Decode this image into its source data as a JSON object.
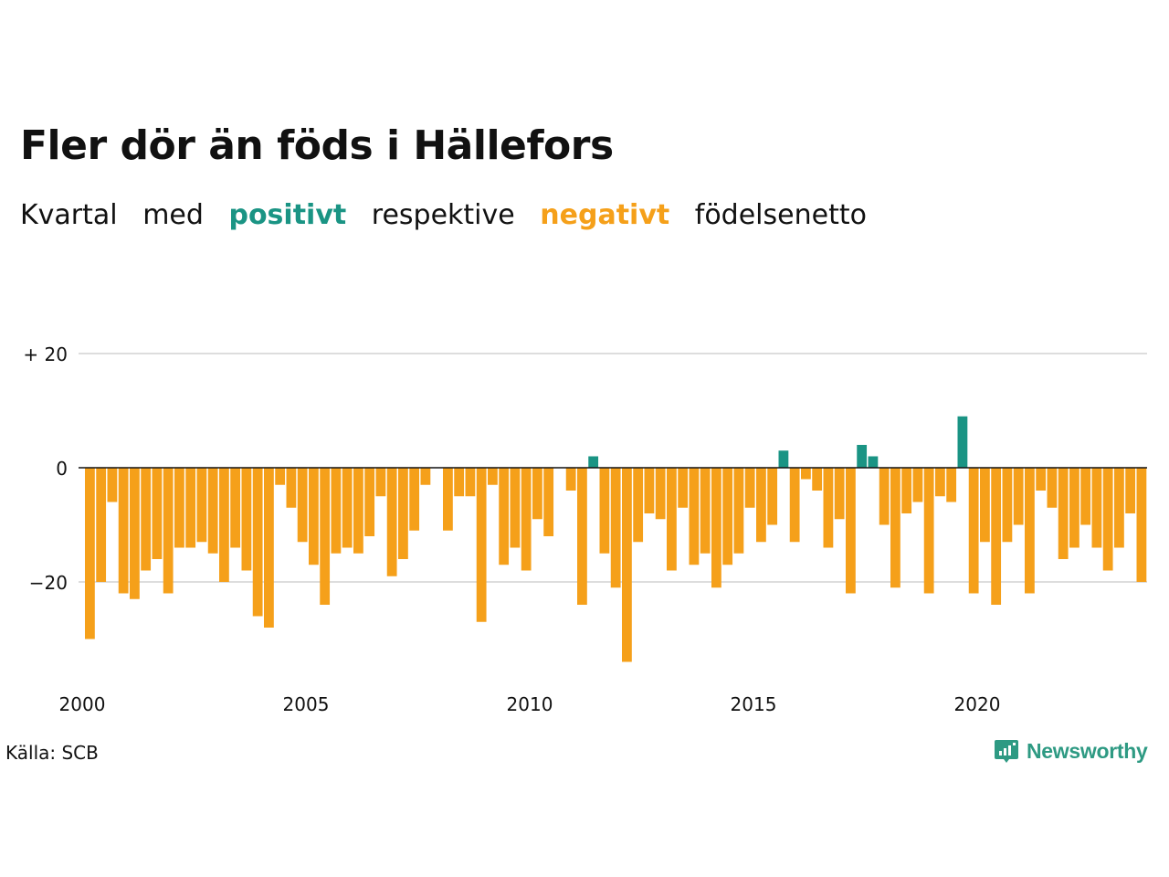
{
  "title": "Fler dör än föds i Hällefors",
  "subtitle": {
    "words": [
      "Kvartal",
      "med",
      "positivt",
      "respektive",
      "negativt",
      "födelsenetto"
    ],
    "positive_color": "#1a9484",
    "negative_color": "#f5a01a"
  },
  "source": "Källa: SCB",
  "brand": {
    "name": "Newsworthy",
    "color": "#2e9a83",
    "icon": "newsworthy-logo-icon"
  },
  "chart_data": {
    "type": "bar",
    "x_start": "2000-Q1",
    "frequency": "quarterly",
    "ylim": [
      -36,
      22
    ],
    "yticks": [
      20,
      0,
      -20
    ],
    "ytick_labels": [
      "+ 20",
      "0",
      "−20"
    ],
    "xtick_labels": [
      "2000",
      "2005",
      "2010",
      "2015",
      "2020"
    ],
    "grid": true,
    "legend": "none",
    "values": [
      -30,
      -20,
      -6,
      -22,
      -23,
      -18,
      -16,
      -22,
      -14,
      -14,
      -13,
      -15,
      -20,
      -14,
      -18,
      -26,
      -28,
      -3,
      -7,
      -13,
      -17,
      -24,
      -15,
      -14,
      -15,
      -12,
      -5,
      -19,
      -16,
      -11,
      -3,
      0,
      -11,
      -5,
      -5,
      -27,
      -3,
      -17,
      -14,
      -18,
      -9,
      -12,
      0,
      -4,
      -24,
      2,
      -15,
      -21,
      -34,
      -13,
      -8,
      -9,
      -18,
      -7,
      -17,
      -15,
      -21,
      -17,
      -15,
      -7,
      -13,
      -10,
      3,
      -13,
      -2,
      -4,
      -14,
      -9,
      -22,
      4,
      2,
      -10,
      -21,
      -8,
      -6,
      -22,
      -5,
      -6,
      9,
      -22,
      -13,
      -24,
      -13,
      -10,
      -22,
      -4,
      -7,
      -16,
      -14,
      -10,
      -14,
      -18,
      -14,
      -8,
      -20
    ]
  }
}
